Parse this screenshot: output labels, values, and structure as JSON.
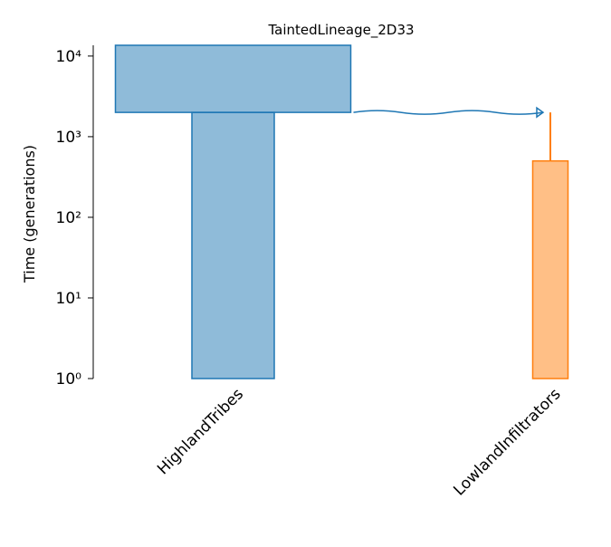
{
  "chart_data": {
    "type": "demes",
    "title": "TaintedLineage_2D33",
    "y_label": "Time (generations)",
    "log_y": true,
    "ylim": [
      1,
      13600
    ],
    "yticks": [
      {
        "value": 1,
        "label": "10⁰"
      },
      {
        "value": 10,
        "label": "10¹"
      },
      {
        "value": 100,
        "label": "10²"
      },
      {
        "value": 1000,
        "label": "10³"
      },
      {
        "value": 10000,
        "label": "10⁴"
      }
    ],
    "categories": [
      "HighlandTribes",
      "LowlandInfiltrators"
    ],
    "demes": [
      {
        "name": "HighlandTribes",
        "color": "#1f77b4",
        "epochs": [
          {
            "end_time": 2000,
            "size": 10000
          },
          {
            "size": 3500
          }
        ]
      },
      {
        "name": "LowlandInfiltrators",
        "color": "#ff7f0e",
        "start_time": 2000,
        "epochs": [
          {
            "start_time": 500,
            "size": 1500
          }
        ]
      }
    ],
    "pulses": [
      {
        "source": 0,
        "dest": 1,
        "time": 2000
      }
    ]
  }
}
